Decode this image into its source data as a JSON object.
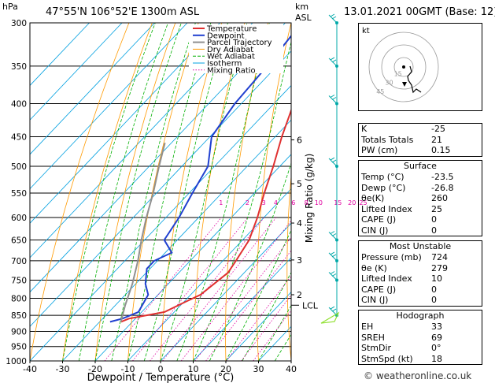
{
  "header": {
    "hpa_label": "hPa",
    "location": "47°55'N  106°52'E  1300m  ASL",
    "km_label": "km",
    "asl_label": "ASL",
    "datetime": "13.01.2021  00GMT  (Base: 12)"
  },
  "footer": {
    "copyright": "© weatheronline.co.uk"
  },
  "colors": {
    "temperature": "#e03030",
    "dewpoint": "#2040d0",
    "parcel": "#909090",
    "dry_adiabat": "#ff9a00",
    "wet_adiabat": "#00b000",
    "isotherm": "#00a0e0",
    "mixing_ratio": "#e000a0",
    "wind": "#00a8a8"
  },
  "chart_data": {
    "type": "line",
    "xlabel": "Dewpoint / Temperature (°C)",
    "ylabel": "",
    "right_axis_label": "Mixing Ratio (g/kg)",
    "xlim": [
      -40,
      40
    ],
    "ylim": [
      1000,
      300
    ],
    "x_ticks": [
      "-40",
      "-30",
      "-20",
      "-10",
      "0",
      "10",
      "20",
      "30",
      "40"
    ],
    "pressure_levels": [
      "300",
      "350",
      "400",
      "450",
      "500",
      "550",
      "600",
      "650",
      "700",
      "750",
      "800",
      "850",
      "900",
      "950",
      "1000"
    ],
    "km_ticks": [
      {
        "label": "6",
        "p": 455
      },
      {
        "label": "5",
        "p": 532
      },
      {
        "label": "4",
        "p": 612
      },
      {
        "label": "3",
        "p": 698
      },
      {
        "label": "2",
        "p": 790
      }
    ],
    "lcl": {
      "label": "LCL",
      "p": 820
    },
    "mixing_ratio_labels": [
      "1",
      "2",
      "3",
      "4",
      "6",
      "8",
      "10",
      "15",
      "20",
      "25"
    ],
    "legend": [
      "Temperature",
      "Dewpoint",
      "Parcel Trajectory",
      "Dry Adiabat",
      "Wet Adiabat",
      "Isotherm",
      "Mixing Ratio"
    ],
    "series": [
      {
        "name": "Temperature",
        "points": [
          [
            300,
            -45
          ],
          [
            350,
            -40
          ],
          [
            400,
            -34
          ],
          [
            450,
            -28
          ],
          [
            500,
            -22
          ],
          [
            550,
            -17
          ],
          [
            600,
            -12
          ],
          [
            650,
            -8
          ],
          [
            700,
            -6
          ],
          [
            730,
            -5
          ],
          [
            760,
            -6
          ],
          [
            790,
            -7
          ],
          [
            810,
            -9.5
          ],
          [
            840,
            -13
          ],
          [
            860,
            -22
          ],
          [
            870,
            -23.5
          ]
        ]
      },
      {
        "name": "Dewpoint",
        "points": [
          [
            300,
            -55
          ],
          [
            350,
            -53
          ],
          [
            400,
            -52
          ],
          [
            450,
            -49.5
          ],
          [
            500,
            -42
          ],
          [
            550,
            -39
          ],
          [
            600,
            -36
          ],
          [
            650,
            -34
          ],
          [
            680,
            -28
          ],
          [
            700,
            -31
          ],
          [
            720,
            -31
          ],
          [
            760,
            -27
          ],
          [
            790,
            -23
          ],
          [
            840,
            -21
          ],
          [
            860,
            -24
          ],
          [
            870,
            -26.8
          ]
        ]
      },
      {
        "name": "Parcel Trajectory",
        "points": [
          [
            870,
            -23.5
          ],
          [
            820,
            -27
          ],
          [
            760,
            -31
          ],
          [
            700,
            -36
          ],
          [
            650,
            -41
          ],
          [
            600,
            -46
          ],
          [
            550,
            -51
          ],
          [
            500,
            -57
          ],
          [
            460,
            -62
          ]
        ]
      }
    ],
    "hodograph": {
      "label": "kt",
      "ring_labels": [
        "15",
        "30",
        "45"
      ]
    }
  },
  "tables": {
    "indices": [
      {
        "label": "K",
        "value": "-25"
      },
      {
        "label": "Totals Totals",
        "value": "21"
      },
      {
        "label": "PW (cm)",
        "value": "0.15"
      }
    ],
    "surface_title": "Surface",
    "surface": [
      {
        "label": "Temp (°C)",
        "value": "-23.5"
      },
      {
        "label": "Dewp (°C)",
        "value": "-26.8"
      },
      {
        "label": "θe(K)",
        "value": "260"
      },
      {
        "label": "Lifted Index",
        "value": "25"
      },
      {
        "label": "CAPE (J)",
        "value": "0"
      },
      {
        "label": "CIN (J)",
        "value": "0"
      }
    ],
    "unstable_title": "Most Unstable",
    "unstable": [
      {
        "label": "Pressure (mb)",
        "value": "724"
      },
      {
        "label": "θe (K)",
        "value": "279"
      },
      {
        "label": "Lifted Index",
        "value": "10"
      },
      {
        "label": "CAPE (J)",
        "value": "0"
      },
      {
        "label": "CIN (J)",
        "value": "0"
      }
    ],
    "hodograph_title": "Hodograph",
    "hodo": [
      {
        "label": "EH",
        "value": "33"
      },
      {
        "label": "SREH",
        "value": "69"
      },
      {
        "label": "StmDir",
        "value": "0°"
      },
      {
        "label": "StmSpd (kt)",
        "value": "18"
      }
    ]
  }
}
